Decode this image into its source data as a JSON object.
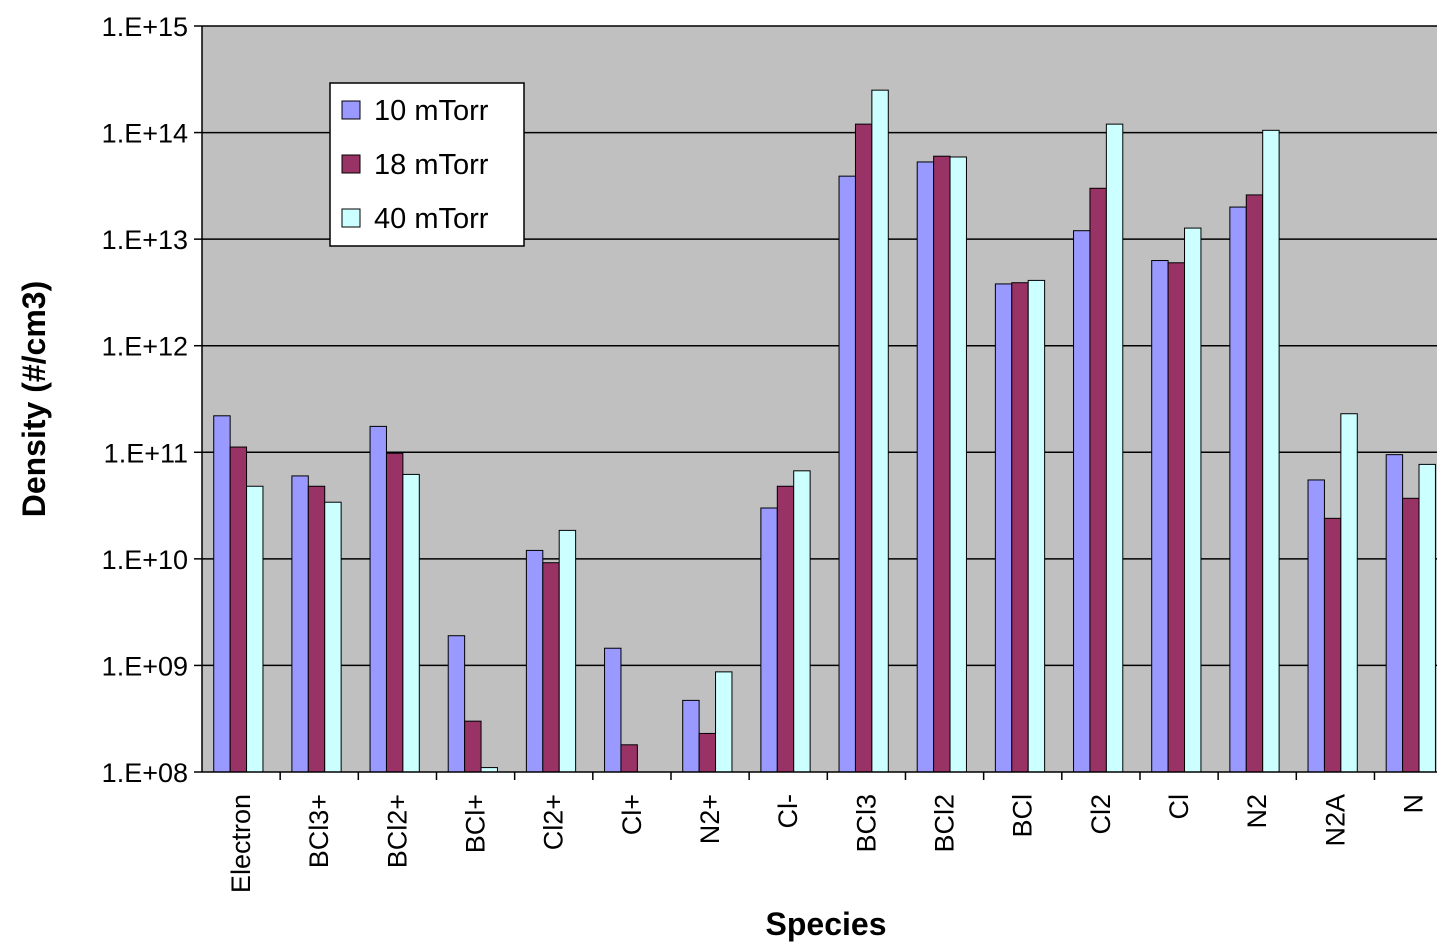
{
  "chart_data": {
    "type": "bar",
    "title": "",
    "xlabel": "Species",
    "ylabel": "Density (#/cm3)",
    "y_scale": "log",
    "ylim": [
      100000000.0,
      1000000000000000.0
    ],
    "y_ticks": [
      {
        "value": 100000000.0,
        "label": "1.E+08"
      },
      {
        "value": 1000000000.0,
        "label": "1.E+09"
      },
      {
        "value": 10000000000.0,
        "label": "1.E+10"
      },
      {
        "value": 100000000000.0,
        "label": "1.E+11"
      },
      {
        "value": 1000000000000.0,
        "label": "1.E+12"
      },
      {
        "value": 10000000000000.0,
        "label": "1.E+13"
      },
      {
        "value": 100000000000000.0,
        "label": "1.E+14"
      },
      {
        "value": 1000000000000000.0,
        "label": "1.E+15"
      }
    ],
    "grid": "horizontal",
    "legend_position": "top-left",
    "categories": [
      "Electron",
      "BCl3+",
      "BCl2+",
      "BCl+",
      "Cl2+",
      "Cl+",
      "N2+",
      "Cl-",
      "BCl3",
      "BCl2",
      "BCl",
      "Cl2",
      "Cl",
      "N2",
      "N2A",
      "N"
    ],
    "series": [
      {
        "name": "10 mTorr",
        "color": "#9999ff",
        "values": [
          220000000000.0,
          60000000000.0,
          175000000000.0,
          1900000000.0,
          12000000000.0,
          1450000000.0,
          470000000.0,
          30000000000.0,
          39000000000000.0,
          53000000000000.0,
          3800000000000.0,
          12000000000000.0,
          6300000000000.0,
          20000000000000.0,
          55000000000.0,
          95000000000.0
        ]
      },
      {
        "name": "18 mTorr",
        "color": "#993366",
        "values": [
          112000000000.0,
          48000000000.0,
          98000000000.0,
          300000000.0,
          9200000000.0,
          180000000.0,
          230000000.0,
          48000000000.0,
          120000000000000.0,
          60000000000000.0,
          3900000000000.0,
          30000000000000.0,
          6000000000000.0,
          26000000000000.0,
          24000000000.0,
          37000000000.0
        ]
      },
      {
        "name": "40 mTorr",
        "color": "#ccffff",
        "values": [
          48000000000.0,
          34000000000.0,
          62000000000.0,
          110000000.0,
          18500000000.0,
          null,
          870000000.0,
          67000000000.0,
          250000000000000.0,
          59000000000000.0,
          4100000000000.0,
          120000000000000.0,
          12700000000000.0,
          105000000000000.0,
          230000000000.0,
          77000000000.0
        ]
      }
    ]
  }
}
